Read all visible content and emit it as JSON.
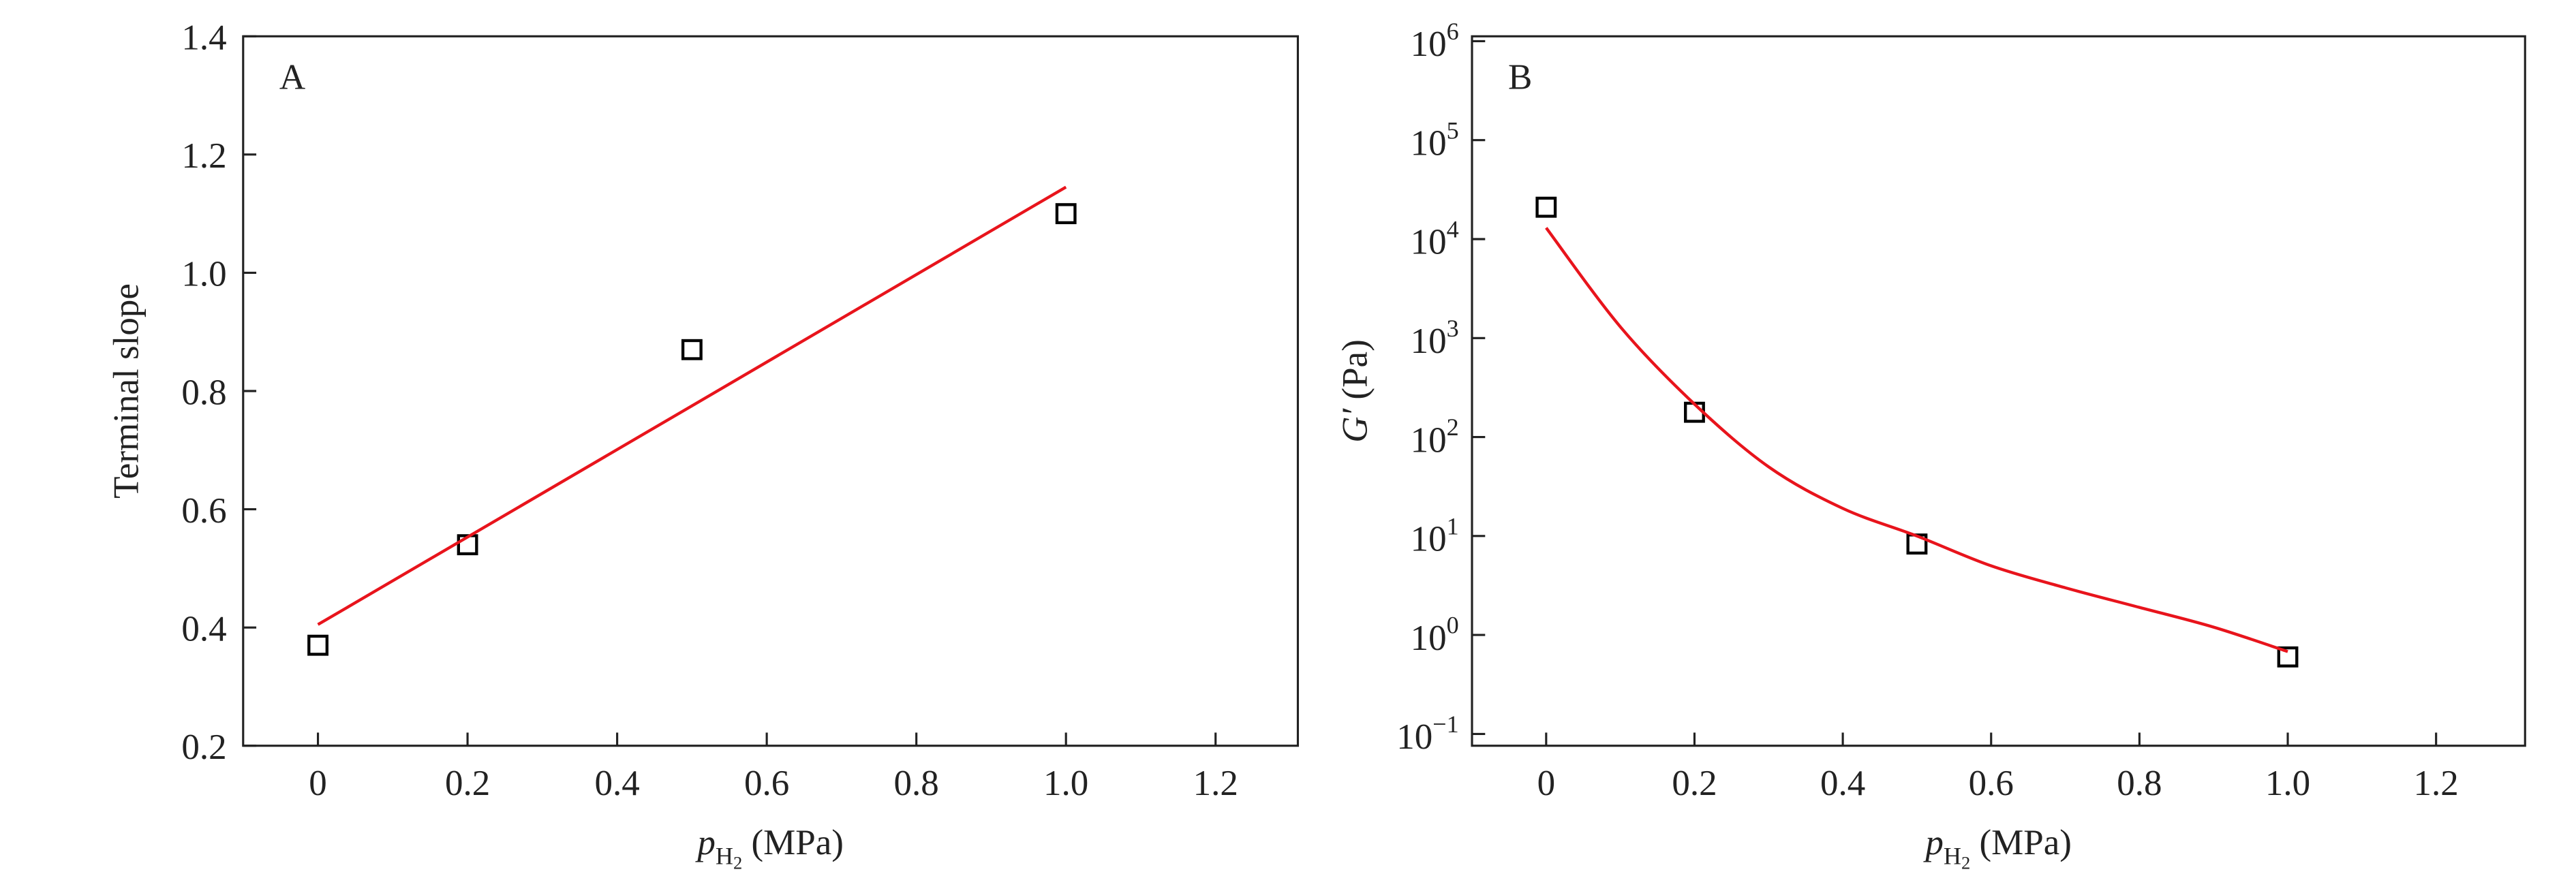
{
  "chart_data": [
    {
      "type": "scatter",
      "panel_label": "A",
      "y_label": "Terminal slope",
      "x_label": [
        "p",
        "H",
        "2",
        " (MPa)"
      ],
      "xlim": [
        -0.1,
        1.31
      ],
      "xticks": [
        0,
        0.2,
        0.4,
        0.6,
        0.8,
        {
          "value": 1,
          "label": "1.0"
        },
        1.2
      ],
      "ylim": [
        0.2,
        1.4
      ],
      "yticks": [
        0.2,
        0.4,
        0.6,
        0.8,
        {
          "value": 1,
          "label": "1.0"
        },
        1.2,
        1.4
      ],
      "log_y": false,
      "grid": false,
      "series": [
        {
          "kind": "markers",
          "color": "#000000",
          "x": [
            0,
            0.2,
            0.5,
            1.0
          ],
          "values": [
            0.37,
            0.54,
            0.87,
            1.1
          ]
        },
        {
          "kind": "line",
          "color": "#e8141c",
          "x": [
            0,
            1.0
          ],
          "values": [
            0.405,
            1.145
          ]
        }
      ]
    },
    {
      "type": "scatter",
      "panel_label": "B",
      "y_label": [
        "G′",
        " (Pa)"
      ],
      "x_label": [
        "p",
        "H",
        "2",
        " (MPa)"
      ],
      "xlim": [
        -0.1,
        1.32
      ],
      "xticks": [
        0,
        0.2,
        0.4,
        0.6,
        0.8,
        {
          "value": 1,
          "label": "1.0"
        },
        1.2
      ],
      "ylim": [
        0.076,
        1120000
      ],
      "log_y": true,
      "grid": false,
      "yticks": [
        {
          "value": 0.1,
          "label": "10",
          "exponent": "−1"
        },
        {
          "value": 1,
          "label": "10",
          "exponent": "0"
        },
        {
          "value": 10,
          "label": "10",
          "exponent": "1"
        },
        {
          "value": 100,
          "label": "10",
          "exponent": "2"
        },
        {
          "value": 1000,
          "label": "10",
          "exponent": "3"
        },
        {
          "value": 10000,
          "label": "10",
          "exponent": "4"
        },
        {
          "value": 100000,
          "label": "10",
          "exponent": "5"
        },
        {
          "value": 1000000,
          "label": "10",
          "exponent": "6"
        }
      ],
      "series": [
        {
          "kind": "markers",
          "color": "#000000",
          "x": [
            0,
            0.2,
            0.5,
            1.0
          ],
          "values": [
            21000,
            178,
            8.3,
            0.6
          ]
        },
        {
          "kind": "line",
          "color": "#e8141c",
          "x": [
            0,
            0.1,
            0.2,
            0.3,
            0.4,
            0.5,
            0.6,
            0.7,
            0.8,
            0.9,
            1.0
          ],
          "values": [
            13000,
            1300,
            215,
            50,
            19,
            10,
            5,
            3.0,
            1.9,
            1.2,
            0.68
          ]
        }
      ]
    }
  ]
}
